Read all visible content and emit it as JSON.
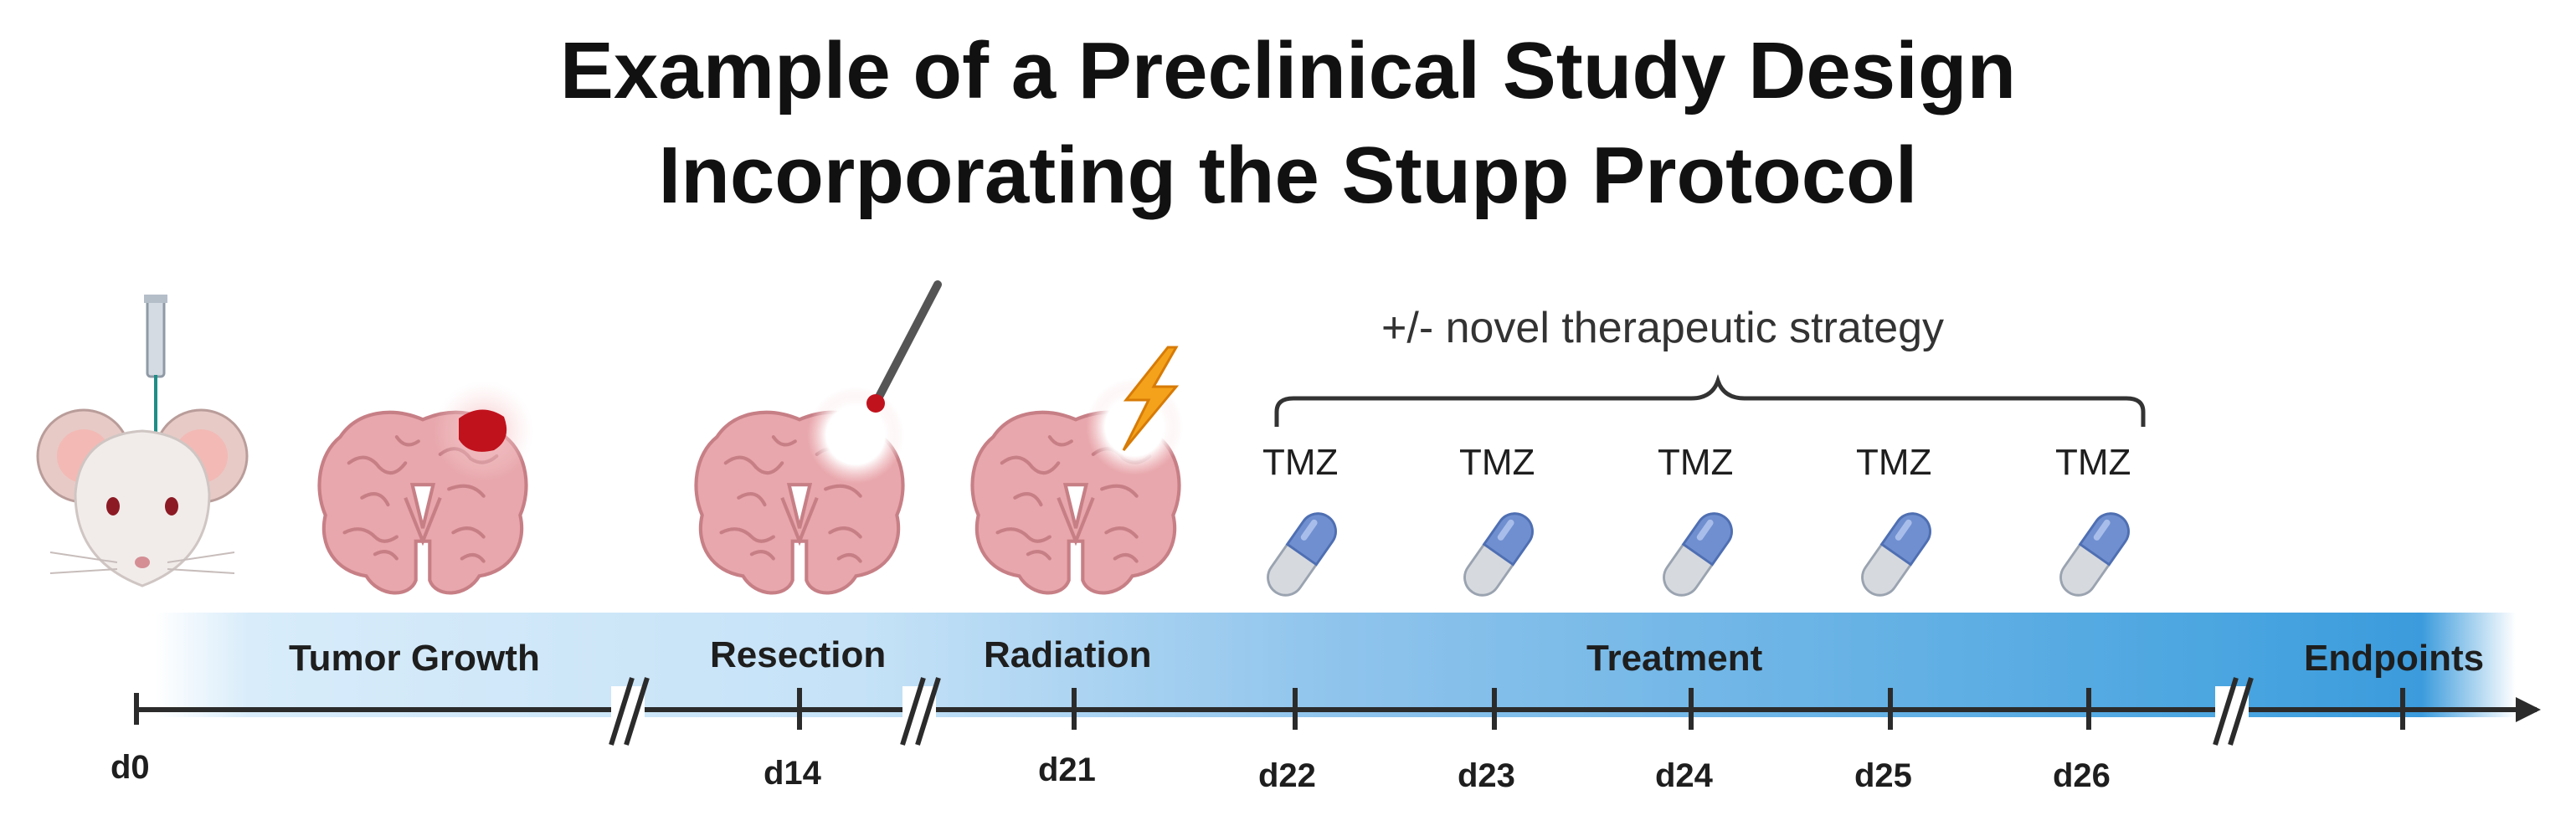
{
  "title": {
    "line1": "Example of a Preclinical Study Design",
    "line2": "Incorporating the Stupp Protocol"
  },
  "strategy_label": "+/- novel therapeutic strategy",
  "phases": {
    "tumor_growth": "Tumor Growth",
    "resection": "Resection",
    "radiation": "Radiation",
    "treatment": "Treatment",
    "endpoints": "Endpoints"
  },
  "days": {
    "d0": "d0",
    "d14": "d14",
    "d21": "d21",
    "d22": "d22",
    "d23": "d23",
    "d24": "d24",
    "d25": "d25",
    "d26": "d26"
  },
  "drugs": [
    "TMZ",
    "TMZ",
    "TMZ",
    "TMZ",
    "TMZ"
  ],
  "icons": {
    "mouse": "mouse-injection-icon",
    "tumor_brain": "brain-with-tumor-icon",
    "resection_brain": "brain-resection-icon",
    "radiation_brain": "brain-radiation-icon",
    "pill": "capsule-icon"
  },
  "colors": {
    "timeline_bar_light": "#d8ecfa",
    "timeline_bar_dark": "#3a9bdc",
    "brain": "#e8a7ac",
    "tumor": "#c0121d",
    "capsule_top": "#6f8fd0",
    "capsule_bottom": "#d6d9de",
    "lightning": "#f4a21b"
  }
}
